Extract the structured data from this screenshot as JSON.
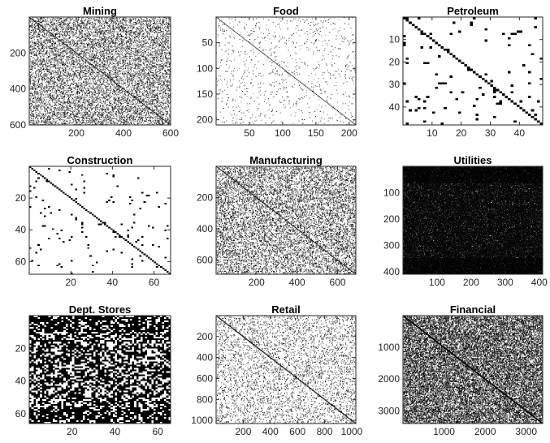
{
  "chart_data": [
    {
      "type": "heatmap",
      "title": "Mining",
      "matrix_size": 600,
      "xlim": [
        0,
        600
      ],
      "ylim": [
        0,
        600
      ],
      "xticks": [
        200,
        400,
        600
      ],
      "yticks": [
        200,
        400,
        600
      ],
      "density": 0.03,
      "diagonal": true
    },
    {
      "type": "heatmap",
      "title": "Food",
      "matrix_size": 210,
      "xlim": [
        0,
        210
      ],
      "ylim": [
        0,
        210
      ],
      "xticks": [
        50,
        100,
        150,
        200
      ],
      "yticks": [
        50,
        100,
        150,
        200
      ],
      "density": 0.02,
      "diagonal": true
    },
    {
      "type": "heatmap",
      "title": "Petroleum",
      "matrix_size": 48,
      "xlim": [
        0,
        48
      ],
      "ylim": [
        0,
        48
      ],
      "xticks": [
        10,
        20,
        30,
        40
      ],
      "yticks": [
        10,
        20,
        30,
        40
      ],
      "density": 0.04,
      "diagonal": true
    },
    {
      "type": "heatmap",
      "title": "Construction",
      "matrix_size": 68,
      "xlim": [
        0,
        68
      ],
      "ylim": [
        0,
        68
      ],
      "xticks": [
        20,
        40,
        60
      ],
      "yticks": [
        20,
        40,
        60
      ],
      "density": 0.025,
      "diagonal": true
    },
    {
      "type": "heatmap",
      "title": "Manufacturing",
      "matrix_size": 690,
      "xlim": [
        0,
        690
      ],
      "ylim": [
        0,
        690
      ],
      "xticks": [
        200,
        400,
        600
      ],
      "yticks": [
        200,
        400,
        600
      ],
      "density": 0.02,
      "diagonal": true
    },
    {
      "type": "heatmap",
      "title": "Utilities",
      "matrix_size": 410,
      "xlim": [
        0,
        410
      ],
      "ylim": [
        0,
        410
      ],
      "xticks": [
        100,
        200,
        300,
        400
      ],
      "yticks": [
        100,
        200,
        300,
        400
      ],
      "density": 0.45,
      "diagonal": true
    },
    {
      "type": "heatmap",
      "title": "Dept. Stores",
      "matrix_size": 66,
      "xlim": [
        0,
        66
      ],
      "ylim": [
        0,
        66
      ],
      "xticks": [
        20,
        40,
        60
      ],
      "yticks": [
        20,
        40,
        60
      ],
      "density": 0.6,
      "diagonal": true
    },
    {
      "type": "heatmap",
      "title": "Retail",
      "matrix_size": 1030,
      "xlim": [
        0,
        1030
      ],
      "ylim": [
        0,
        1030
      ],
      "xticks": [
        200,
        400,
        600,
        800,
        1000
      ],
      "yticks": [
        200,
        400,
        600,
        800,
        1000
      ],
      "density": 0.004,
      "diagonal": true
    },
    {
      "type": "heatmap",
      "title": "Financial",
      "matrix_size": 3400,
      "xlim": [
        0,
        3400
      ],
      "ylim": [
        0,
        3400
      ],
      "xticks": [
        1000,
        2000,
        3000
      ],
      "yticks": [
        1000,
        2000,
        3000
      ],
      "density": 0.002,
      "diagonal": true
    }
  ]
}
